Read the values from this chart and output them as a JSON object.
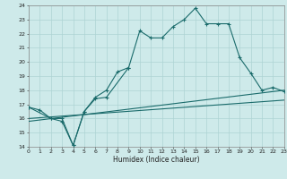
{
  "title": "",
  "xlabel": "Humidex (Indice chaleur)",
  "xlim": [
    0,
    23
  ],
  "ylim": [
    14,
    24
  ],
  "xticks": [
    0,
    1,
    2,
    3,
    4,
    5,
    6,
    7,
    8,
    9,
    10,
    11,
    12,
    13,
    14,
    15,
    16,
    17,
    18,
    19,
    20,
    21,
    22,
    23
  ],
  "yticks": [
    14,
    15,
    16,
    17,
    18,
    19,
    20,
    21,
    22,
    23,
    24
  ],
  "background_color": "#ceeaea",
  "grid_color": "#aed4d4",
  "line_color": "#1a6b6b",
  "series1_x": [
    0,
    1,
    2,
    3,
    4,
    5,
    6,
    7,
    8,
    9,
    10,
    11,
    12,
    13,
    14,
    15,
    16,
    17,
    18,
    19,
    20,
    21,
    22,
    23
  ],
  "series1_y": [
    16.8,
    16.6,
    16.0,
    16.0,
    14.1,
    16.5,
    17.5,
    18.0,
    19.3,
    19.6,
    22.2,
    21.7,
    21.7,
    22.5,
    23.0,
    23.8,
    22.7,
    22.7,
    22.7,
    20.3,
    19.2,
    18.0,
    18.2,
    17.9
  ],
  "series2_x": [
    0,
    2,
    3,
    4,
    5,
    6,
    7,
    9
  ],
  "series2_y": [
    16.8,
    16.0,
    15.8,
    14.1,
    16.5,
    17.4,
    17.5,
    19.6
  ],
  "series3_x": [
    0,
    23
  ],
  "series3_y": [
    16.0,
    17.3
  ],
  "series4_x": [
    0,
    23
  ],
  "series4_y": [
    15.8,
    18.0
  ]
}
